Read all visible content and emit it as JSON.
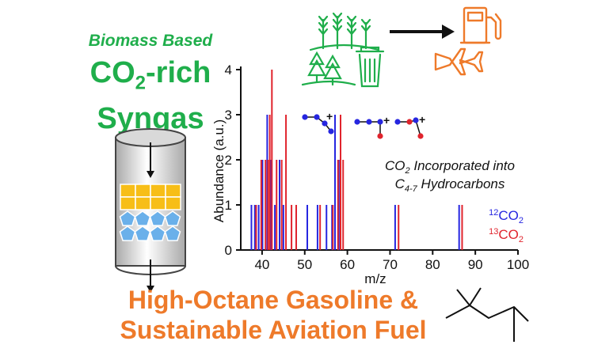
{
  "text": {
    "biomass": "Biomass Based",
    "co2rich_a": "CO",
    "co2rich_sub": "2",
    "co2rich_b": "-rich",
    "syngas": "Syngas",
    "bottom_line1": "High-Octane Gasoline &",
    "bottom_line2": "Sustainable Aviation Fuel"
  },
  "colors": {
    "green": "#1fae4b",
    "orange": "#ee7a2a",
    "blue": "#2626e0",
    "red": "#e0242d",
    "catalyst_yellow": "#f7be17",
    "catalyst_blue": "#6ab0ea"
  },
  "icons": [
    "wheat-icon",
    "trees-icon",
    "trash-can-icon",
    "arrow-right-icon",
    "fuel-pump-icon",
    "airplane-icon",
    "reactor-column-icon",
    "molecule-icon"
  ],
  "chart_data": {
    "type": "bar",
    "xlabel": "m/z",
    "ylabel": "Abundance (a.u.)",
    "xlim": [
      35,
      100
    ],
    "ylim": [
      0,
      4
    ],
    "xticks": [
      40,
      50,
      60,
      70,
      80,
      90,
      100
    ],
    "yticks": [
      0,
      1,
      2,
      3,
      4
    ],
    "annotation_line1_pre": "CO",
    "annotation_line1_sub": "2",
    "annotation_line1_post": " Incorporated into",
    "annotation_line2_pre": "C",
    "annotation_line2_sub": "4-7",
    "annotation_line2_post": "  Hydrocarbons",
    "legend": [
      {
        "sup": "12",
        "label": "CO",
        "sub": "2",
        "color": "#2626e0"
      },
      {
        "sup": "13",
        "label": "CO",
        "sub": "2",
        "color": "#e0242d"
      }
    ],
    "series": [
      {
        "name": "12CO2",
        "color": "#2626e0",
        "x": [
          37.5,
          38.3,
          39.2,
          40.1,
          41.2,
          42.0,
          43.0,
          44.1,
          45.0,
          50.6,
          53.0,
          55.1,
          56.4,
          57.1,
          58.0,
          71.2,
          86.2
        ],
        "y": [
          1,
          1,
          1,
          2,
          3,
          2,
          1,
          2,
          1,
          1,
          1,
          1,
          1,
          3,
          2,
          1,
          1
        ]
      },
      {
        "name": "13CO2",
        "color": "#e0242d",
        "x": [
          38.6,
          39.8,
          40.8,
          41.4,
          41.8,
          42.3,
          43.4,
          44.6,
          45.6,
          46.9,
          48.0,
          53.6,
          56.6,
          57.8,
          58.4,
          59.0,
          72.0,
          86.9
        ],
        "y": [
          1,
          2,
          2,
          2,
          3,
          4,
          2,
          2,
          3,
          1,
          1,
          1,
          1,
          2,
          3,
          2,
          1,
          1
        ]
      }
    ]
  }
}
